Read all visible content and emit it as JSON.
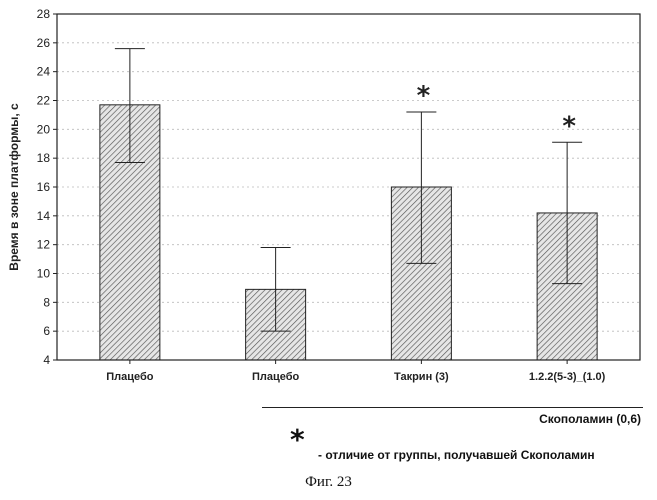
{
  "chart_data": {
    "type": "bar",
    "ylabel": "Время в зоне платформы, с",
    "ylim": [
      4,
      28
    ],
    "yticks": [
      4,
      6,
      8,
      10,
      12,
      14,
      16,
      18,
      20,
      22,
      24,
      26,
      28
    ],
    "grid": true,
    "categories": [
      "Плацебо",
      "Плацебо",
      "Такрин (3)",
      "1.2.2(5-3)_(1.0)"
    ],
    "values": [
      21.7,
      8.9,
      16.0,
      14.2
    ],
    "error_upper": [
      25.6,
      11.8,
      21.2,
      19.1
    ],
    "error_lower": [
      17.7,
      6.0,
      10.7,
      9.3
    ],
    "significant": [
      false,
      false,
      true,
      true
    ],
    "significance_marker": "*"
  },
  "group_label": "Скополамин (0,6)",
  "legend": {
    "marker": "*",
    "text": "- отличие от группы, получавшей Скополамин"
  },
  "caption": "Фиг. 23"
}
